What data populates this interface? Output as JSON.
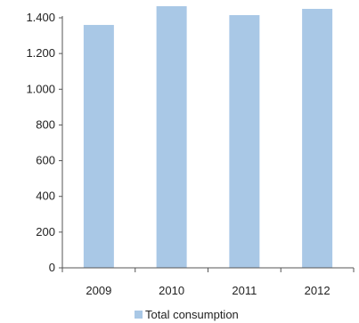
{
  "chart_data": {
    "type": "bar",
    "categories": [
      "2009",
      "2010",
      "2011",
      "2012"
    ],
    "series": [
      {
        "name": "Total consumption",
        "values": [
          1360,
          1465,
          1415,
          1450
        ]
      }
    ],
    "ylim": [
      0,
      1400
    ],
    "yticks": [
      0,
      200,
      400,
      600,
      800,
      1000,
      1200,
      1400
    ],
    "ytick_labels": [
      "0",
      "200",
      "400",
      "600",
      "800",
      "1.000",
      "1.200",
      "1.400"
    ],
    "legend_position": "bottom",
    "grid": false,
    "bar_color": "#a9c8e6"
  }
}
